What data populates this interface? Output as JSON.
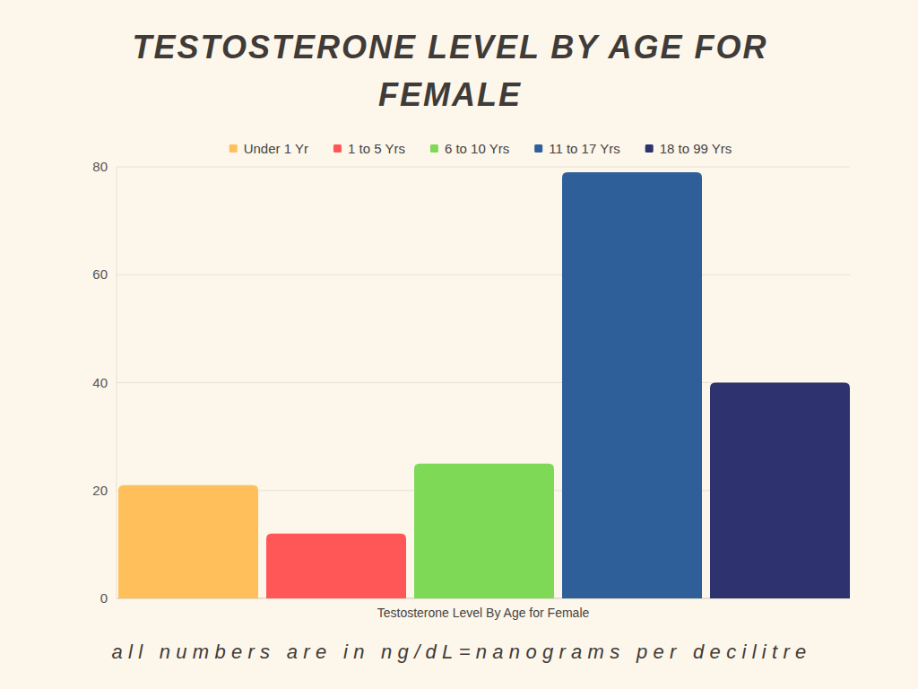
{
  "chart_data": {
    "type": "bar",
    "title": "TESTOSTERONE LEVEL BY AGE FOR FEMALE",
    "categories": [
      "Testosterone Level By Age for Female"
    ],
    "series": [
      {
        "name": "Under 1 Yr",
        "color": "#ffbf5a",
        "values": [
          21
        ]
      },
      {
        "name": "1 to 5 Yrs",
        "color": "#ff5757",
        "values": [
          12
        ]
      },
      {
        "name": "6 to 10 Yrs",
        "color": "#7ed957",
        "values": [
          25
        ]
      },
      {
        "name": "11 to 17 Yrs",
        "color": "#2f5f99",
        "values": [
          79
        ]
      },
      {
        "name": "18 to 99 Yrs",
        "color": "#2e326e",
        "values": [
          40
        ]
      }
    ],
    "ylim": [
      0,
      80
    ],
    "yticks": [
      0,
      20,
      40,
      60,
      80
    ],
    "grid": true,
    "legend": "top",
    "annotations": [
      "all numbers are in ng/dL=nanograms per decilitre"
    ]
  }
}
